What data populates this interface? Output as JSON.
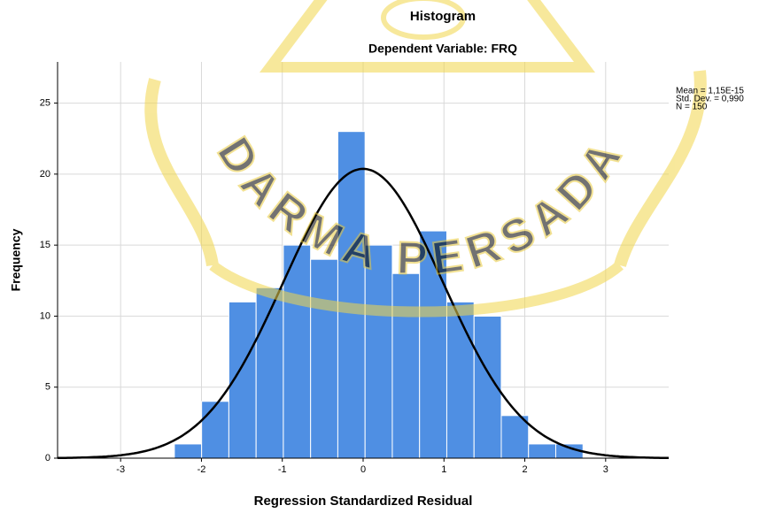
{
  "chart_data": {
    "type": "histogram",
    "title": "Histogram",
    "subtitle": "Dependent Variable: FRQ",
    "x_label": "Regression Standardized Residual",
    "y_label": "Frequency",
    "watermark": "DARMA PERSADA",
    "bins": [
      -2.335,
      -1.998,
      -1.661,
      -1.324,
      -0.987,
      -0.65,
      -0.313,
      0.024,
      0.361,
      0.698,
      1.035,
      1.372,
      1.709,
      2.046,
      2.383,
      2.72
    ],
    "values": [
      1,
      4,
      11,
      12,
      15,
      14,
      23,
      15,
      13,
      16,
      11,
      10,
      3,
      1,
      1
    ],
    "color": "#4f8fe3",
    "xlim": [
      -3.78,
      3.78
    ],
    "ylim": [
      0,
      27.9
    ],
    "xticks": [
      -3,
      -2,
      -1,
      0,
      1,
      2,
      3
    ],
    "yticks": [
      0,
      5,
      10,
      15,
      20,
      25
    ],
    "grid": true,
    "stats": {
      "values": [
        1.15e-15,
        0.99,
        150
      ],
      "value_labels": [
        "Mean = 1,15E-15",
        "Std. Dev. = 0,990",
        "N = 150"
      ]
    }
  }
}
